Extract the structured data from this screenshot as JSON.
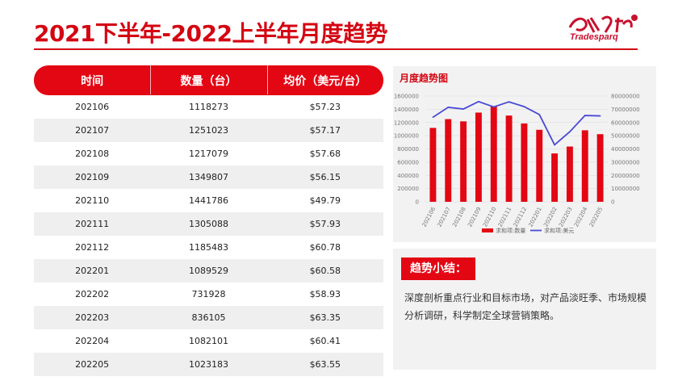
{
  "page": {
    "title": "2021下半年-2022上半年月度趋势",
    "logo_text": "Tradesparq"
  },
  "table": {
    "headers": [
      "时间",
      "数量（台）",
      "均价（美元/台）"
    ],
    "rows": [
      [
        "202106",
        "1118273",
        "$57.23"
      ],
      [
        "202107",
        "1251023",
        "$57.17"
      ],
      [
        "202108",
        "1217079",
        "$57.68"
      ],
      [
        "202109",
        "1349807",
        "$56.15"
      ],
      [
        "202110",
        "1441786",
        "$49.79"
      ],
      [
        "202111",
        "1305088",
        "$57.93"
      ],
      [
        "202112",
        "1185483",
        "$60.78"
      ],
      [
        "202201",
        "1089529",
        "$60.58"
      ],
      [
        "202202",
        "731928",
        "$58.93"
      ],
      [
        "202203",
        "836105",
        "$63.35"
      ],
      [
        "202204",
        "1082101",
        "$60.41"
      ],
      [
        "202205",
        "1023183",
        "$63.55"
      ]
    ]
  },
  "chart_title": "月度趋势图",
  "chart_data": {
    "type": "bar",
    "title": "月度趋势图",
    "categories": [
      "202106",
      "202107",
      "202108",
      "202109",
      "202110",
      "202111",
      "202112",
      "202201",
      "202202",
      "202203",
      "202204",
      "202205"
    ],
    "series": [
      {
        "name": "求和项:数量",
        "type": "bar",
        "axis": "left",
        "color": "#e30613",
        "values": [
          1118273,
          1251023,
          1217079,
          1349807,
          1441786,
          1305088,
          1185483,
          1089529,
          731928,
          836105,
          1082101,
          1023183
        ]
      },
      {
        "name": "求和项:美元",
        "type": "line",
        "axis": "right",
        "color": "#4a4ad6",
        "values": [
          64000000,
          71500000,
          70200000,
          75800000,
          71800000,
          75600000,
          72000000,
          66000000,
          43100000,
          53000000,
          65300000,
          65000000
        ]
      }
    ],
    "ylim_left": [
      0,
      1600000
    ],
    "ylim_right": [
      0,
      80000000
    ],
    "yticks_left": [
      "1600000",
      "1400000",
      "1200000",
      "1000000",
      "800000",
      "600000",
      "400000",
      "200000",
      "0"
    ],
    "yticks_right": [
      "80000000",
      "70000000",
      "60000000",
      "50000000",
      "40000000",
      "30000000",
      "20000000",
      "10000000",
      "0"
    ],
    "legend_position": "bottom",
    "grid": true
  },
  "summary": {
    "label": "趋势小结：",
    "text": "深度剖析重点行业和目标市场，对产品淡旺季、市场规模分析调研，科学制定全球营销策略。"
  },
  "colors": {
    "accent": "#e30613",
    "line": "#4a4ad6"
  }
}
